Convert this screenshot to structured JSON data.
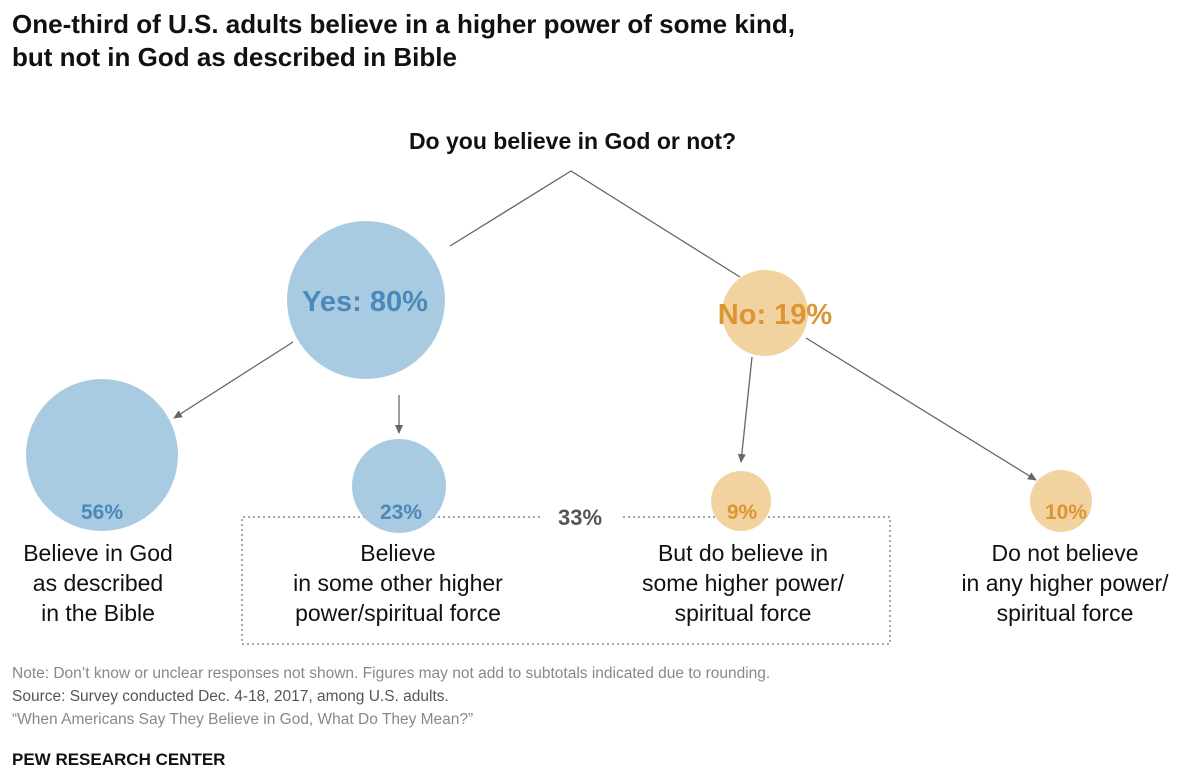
{
  "title": "One-third of U.S. adults believe in a higher power of some kind, but not in God as described in Bible",
  "title_lines": [
    "One-third of U.S. adults believe in a higher power of some kind,",
    "but not in God as described in Bible"
  ],
  "question": "Do you believe in God or not?",
  "colors": {
    "yes_fill": "#a9cbe1",
    "yes_text": "#4a89b9",
    "no_fill": "#f2d3a0",
    "no_text": "#db9532",
    "line": "#666666"
  },
  "nodes": {
    "yes": {
      "label": "Yes: 80%",
      "value": 80
    },
    "no": {
      "label": "No: 19%",
      "value": 19
    },
    "bible": {
      "label": "56%",
      "value": 56,
      "desc": [
        "Believe in God",
        "as described",
        "in the Bible"
      ]
    },
    "other": {
      "label": "23%",
      "value": 23,
      "desc": [
        "Believe",
        "in some other higher",
        "power/spiritual force"
      ]
    },
    "higher": {
      "label": "9%",
      "value": 9,
      "desc": [
        "But do believe in",
        "some higher power/",
        "spiritual force"
      ]
    },
    "none": {
      "label": "10%",
      "value": 10,
      "desc": [
        "Do not believe",
        "in any higher power/",
        "spiritual force"
      ]
    }
  },
  "subtotal": "33%",
  "footer": {
    "note": "Note: Don’t know or unclear responses not shown. Figures may not add to subtotals indicated due to rounding.",
    "source": "Source: Survey conducted Dec. 4-18, 2017, among U.S. adults.",
    "report": "“When Americans Say They Believe in God, What Do They Mean?”",
    "brand": "PEW RESEARCH CENTER"
  }
}
